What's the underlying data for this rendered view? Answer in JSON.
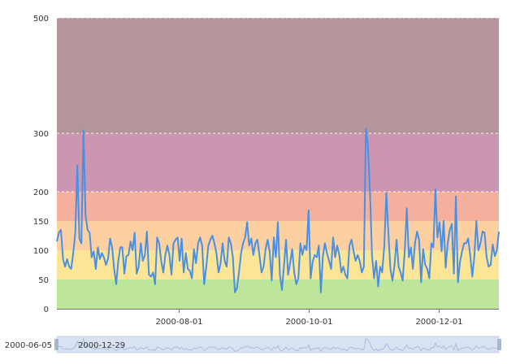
{
  "chart_data": {
    "type": "line",
    "title": "",
    "xlabel": "",
    "ylabel": "",
    "x_range": [
      "2000-06-05",
      "2000-12-29"
    ],
    "ylim": [
      0,
      500
    ],
    "y_ticks": [
      0,
      50,
      100,
      150,
      200,
      300,
      500
    ],
    "x_ticks": [
      "2000-08-01",
      "2000-10-01",
      "2000-12-01"
    ],
    "grid": "dashed lines at band boundaries 200, 300, 500",
    "visual_map_bands": [
      {
        "from": 0,
        "to": 50,
        "color": "#bde69a"
      },
      {
        "from": 50,
        "to": 100,
        "color": "#fde598"
      },
      {
        "from": 100,
        "to": 150,
        "color": "#fdd0a2"
      },
      {
        "from": 150,
        "to": 200,
        "color": "#f4b09c"
      },
      {
        "from": 200,
        "to": 300,
        "color": "#cc96b0"
      },
      {
        "from": 300,
        "to": 500,
        "color": "#b4959c"
      }
    ],
    "series": [
      {
        "color": "#4a90e2",
        "start_date": "2000-06-05",
        "values": [
          115,
          130,
          135,
          85,
          72,
          85,
          72,
          68,
          95,
          130,
          245,
          120,
          112,
          305,
          160,
          135,
          130,
          88,
          98,
          68,
          105,
          85,
          95,
          88,
          75,
          85,
          120,
          105,
          68,
          42,
          82,
          105,
          105,
          60,
          90,
          92,
          115,
          100,
          130,
          60,
          72,
          112,
          82,
          92,
          132,
          58,
          55,
          62,
          42,
          122,
          112,
          82,
          62,
          92,
          108,
          92,
          58,
          112,
          118,
          122,
          82,
          120,
          62,
          95,
          68,
          65,
          52,
          102,
          78,
          112,
          122,
          108,
          42,
          72,
          108,
          118,
          125,
          112,
          95,
          62,
          78,
          112,
          82,
          72,
          122,
          112,
          88,
          28,
          35,
          62,
          95,
          112,
          122,
          148,
          108,
          120,
          92,
          112,
          118,
          92,
          62,
          72,
          102,
          118,
          98,
          48,
          122,
          88,
          148,
          58,
          32,
          75,
          118,
          58,
          78,
          102,
          62,
          42,
          52,
          112,
          92,
          108,
          100,
          168,
          52,
          80,
          92,
          88,
          108,
          28,
          90,
          112,
          95,
          82,
          68,
          122,
          88,
          108,
          92,
          62,
          72,
          58,
          52,
          108,
          118,
          98,
          82,
          92,
          82,
          62,
          72,
          308,
          280,
          202,
          90,
          52,
          82,
          38,
          72,
          62,
          108,
          198,
          130,
          68,
          48,
          75,
          118,
          72,
          62,
          48,
          98,
          172,
          88,
          105,
          68,
          112,
          132,
          118,
          45,
          102,
          75,
          68,
          52,
          112,
          105,
          205,
          122,
          148,
          98,
          150,
          70,
          112,
          135,
          145,
          60,
          192,
          45,
          80,
          98,
          112,
          112,
          120,
          92,
          55,
          90,
          150,
          100,
          112,
          132,
          130,
          88,
          72,
          75,
          110,
          90,
          100,
          132
        ]
      }
    ]
  },
  "zoom": {
    "start_label": "2000-06-05",
    "end_label": "2000-12-29"
  },
  "colors": {
    "line": "#4a90e2",
    "zoom_fill": "#d8e2f2",
    "zoom_border": "#c9d3e4"
  }
}
